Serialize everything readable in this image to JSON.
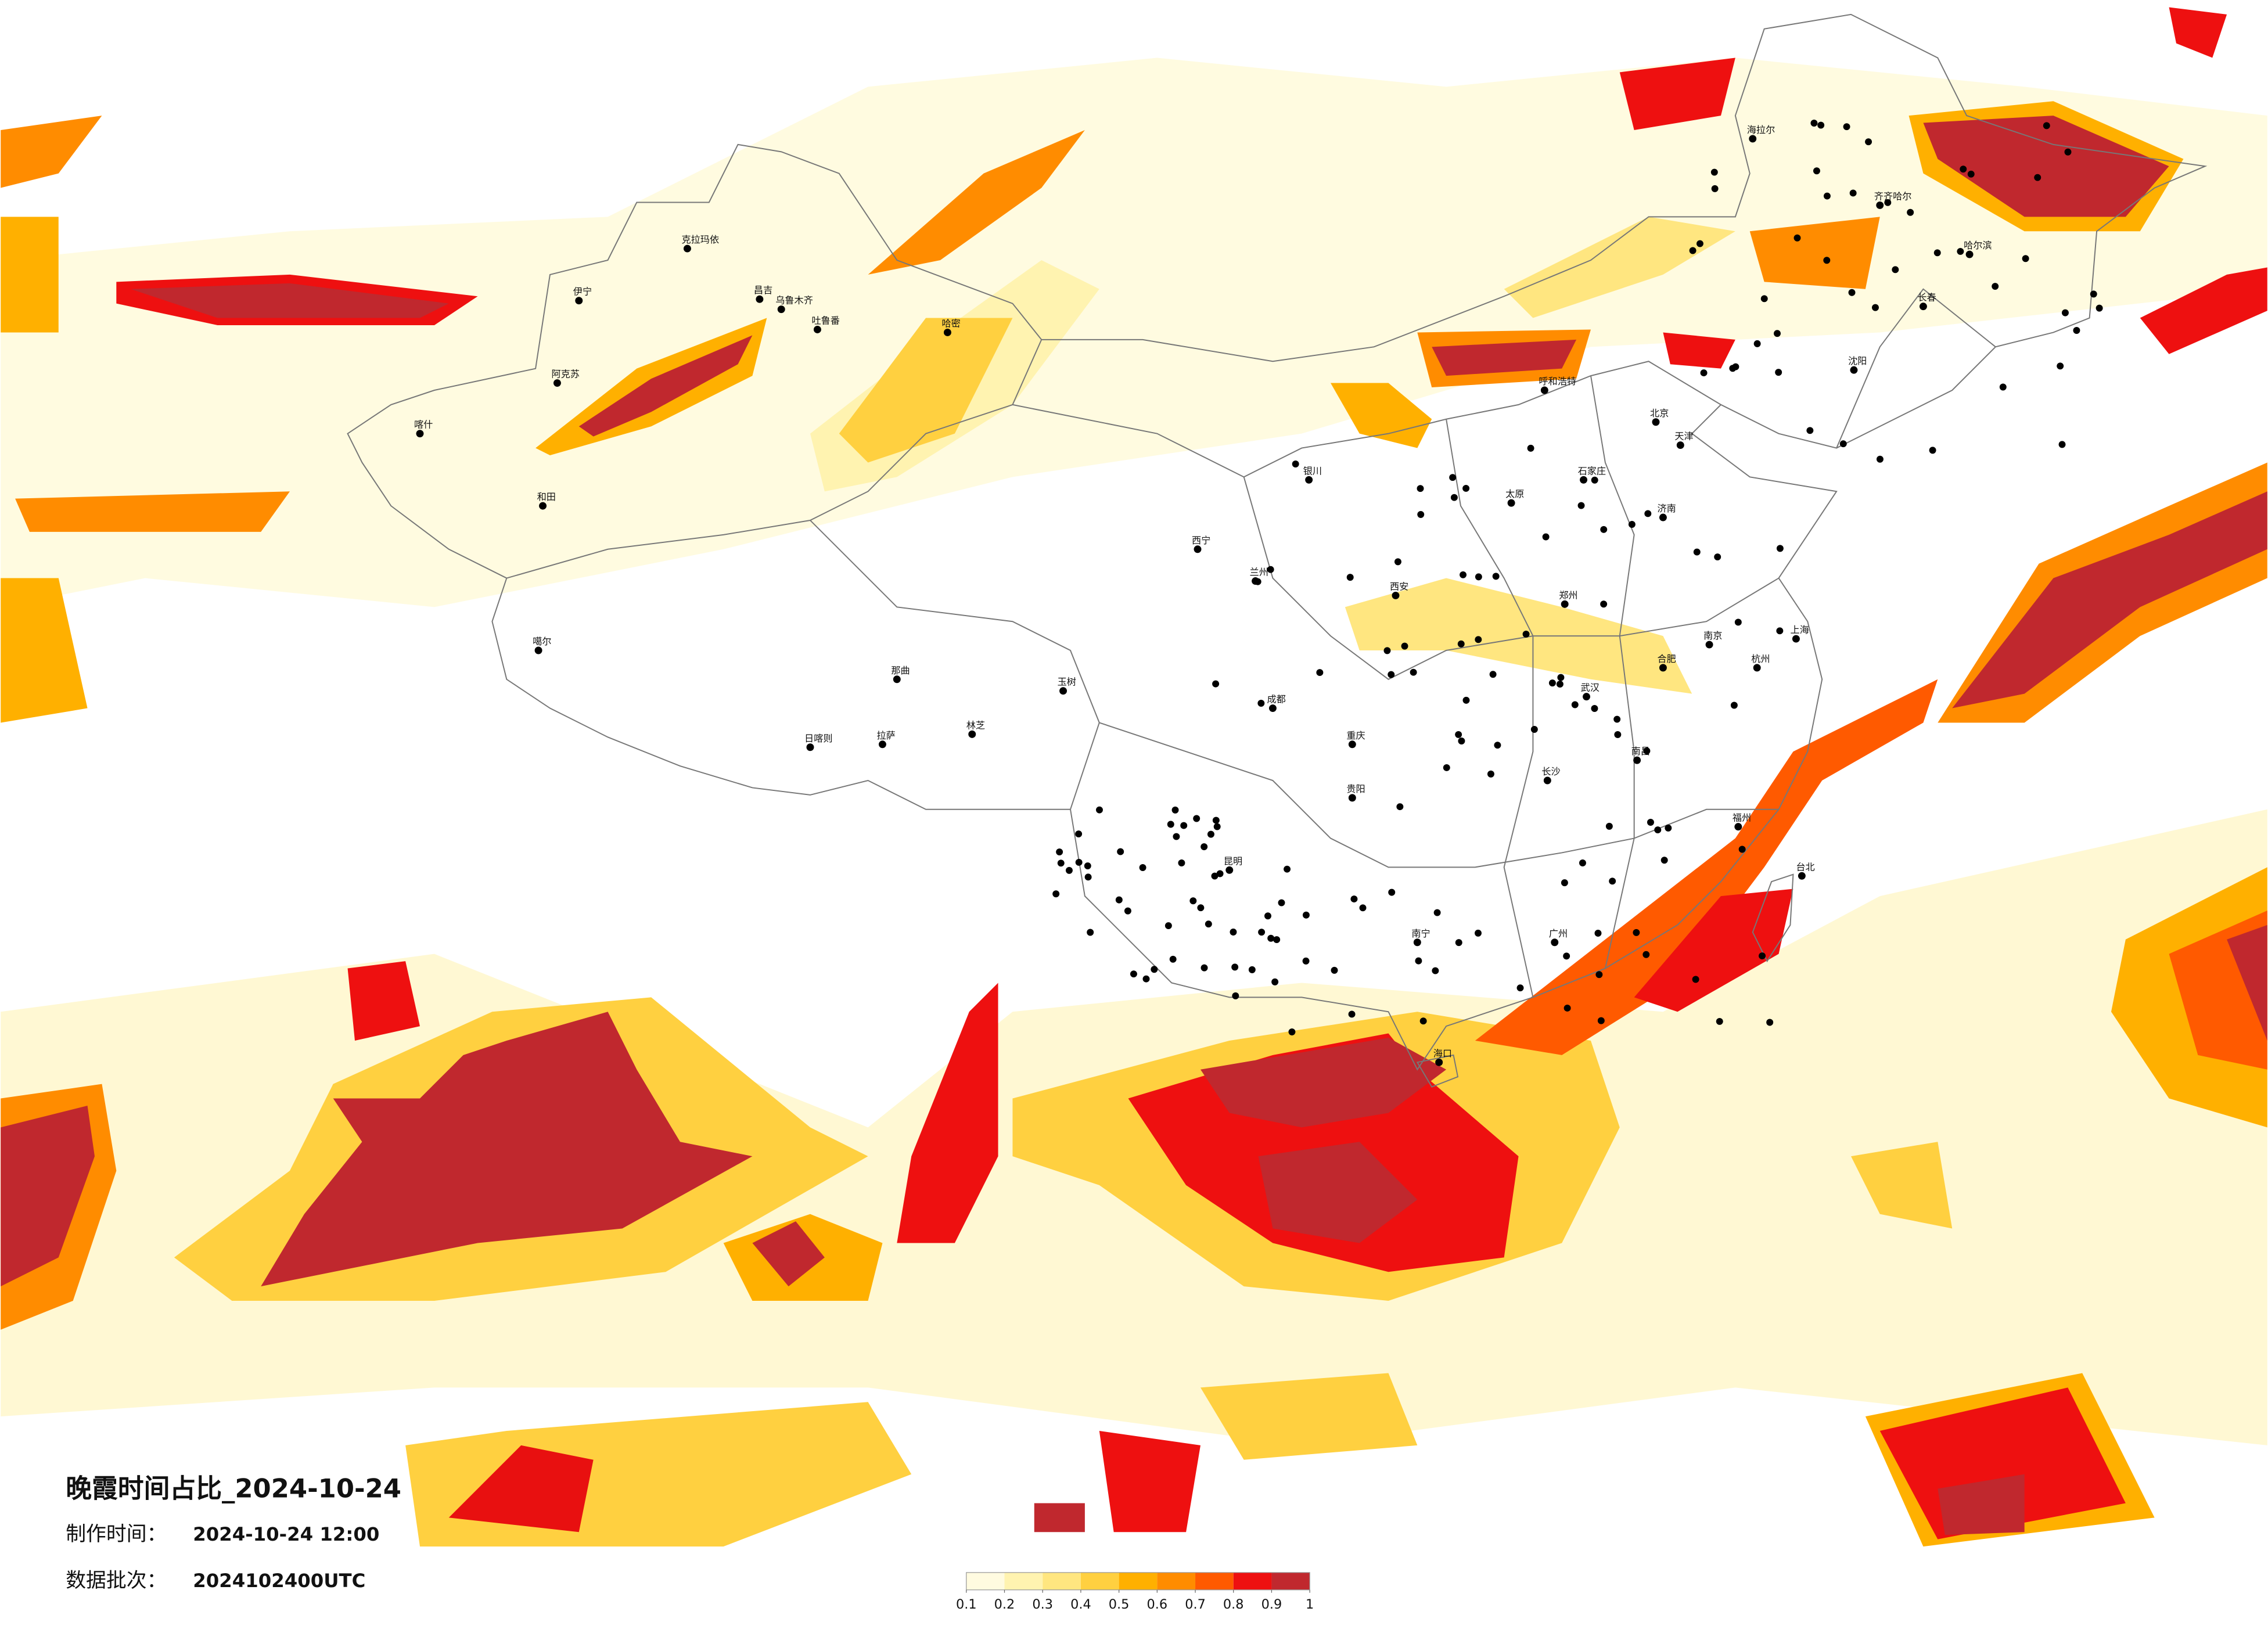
{
  "title": "晚霞时间占比_2024-10-24",
  "info": [
    {
      "label": "制作时间：",
      "value": "2024-10-24 12:00"
    },
    {
      "label": "数据批次：",
      "value": "2024102400UTC"
    }
  ],
  "legend": {
    "ticks": [
      0.1,
      0.2,
      0.3,
      0.4,
      0.5,
      0.6,
      0.7,
      0.8,
      0.9,
      1
    ],
    "colors": [
      "#fffbe0",
      "#fff3b0",
      "#ffe680",
      "#ffd040",
      "#ffb000",
      "#ff8c00",
      "#ff5a00",
      "#ee1010",
      "#c0282e"
    ]
  },
  "cities": [
    "克拉玛依",
    "伊宁",
    "昌吉",
    "乌鲁木齐",
    "吐鲁番",
    "哈密",
    "阿克苏",
    "喀什",
    "和田",
    "噶尔",
    "日喀则",
    "拉萨",
    "林芝",
    "那曲",
    "玉树",
    "西宁",
    "兰州",
    "银川",
    "呼和浩特",
    "北京",
    "天津",
    "石家庄",
    "太原",
    "济南",
    "郑州",
    "西安",
    "成都",
    "重庆",
    "武汉",
    "长沙",
    "南昌",
    "杭州",
    "上海",
    "南京",
    "合肥",
    "福州",
    "广州",
    "南宁",
    "贵阳",
    "昆明",
    "海口",
    "哈尔滨",
    "长春",
    "沈阳",
    "齐齐哈尔",
    "海拉尔",
    "台北"
  ]
}
